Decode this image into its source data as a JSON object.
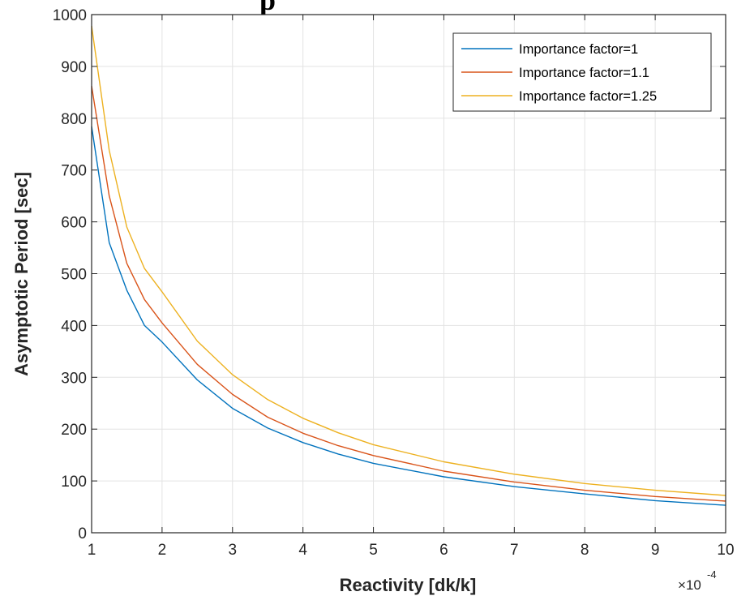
{
  "chart_data": {
    "type": "line",
    "title_fragment": "p",
    "xlabel": "Reactivity [dk/k]",
    "ylabel": "Asymptotic Period [sec]",
    "x_multiplier": "10",
    "x_multiplier_exponent": "-4",
    "xlim": [
      1,
      10
    ],
    "ylim": [
      0,
      1000
    ],
    "xticks": [
      1,
      2,
      3,
      4,
      5,
      6,
      7,
      8,
      9,
      10
    ],
    "yticks": [
      0,
      100,
      200,
      300,
      400,
      500,
      600,
      700,
      800,
      900,
      1000
    ],
    "grid": true,
    "legend_position": "top-right",
    "x": [
      1,
      1.25,
      1.5,
      1.75,
      2,
      2.5,
      3,
      3.5,
      4,
      4.5,
      5,
      6,
      7,
      8,
      9,
      10
    ],
    "series": [
      {
        "name": "Importance factor=1",
        "color": "#0072BD",
        "values": [
          784,
          560,
          468,
          400,
          368,
          295,
          240,
          202,
          174,
          152,
          134,
          108,
          89,
          75,
          62,
          53
        ]
      },
      {
        "name": "Importance factor=1.1",
        "color": "#D95319",
        "values": [
          862,
          650,
          520,
          450,
          405,
          325,
          267,
          223,
          192,
          168,
          149,
          119,
          98,
          82,
          70,
          61
        ]
      },
      {
        "name": "Importance factor=1.25",
        "color": "#EDB120",
        "values": [
          978,
          738,
          590,
          510,
          465,
          370,
          305,
          257,
          221,
          193,
          170,
          137,
          113,
          95,
          82,
          72
        ]
      }
    ]
  }
}
